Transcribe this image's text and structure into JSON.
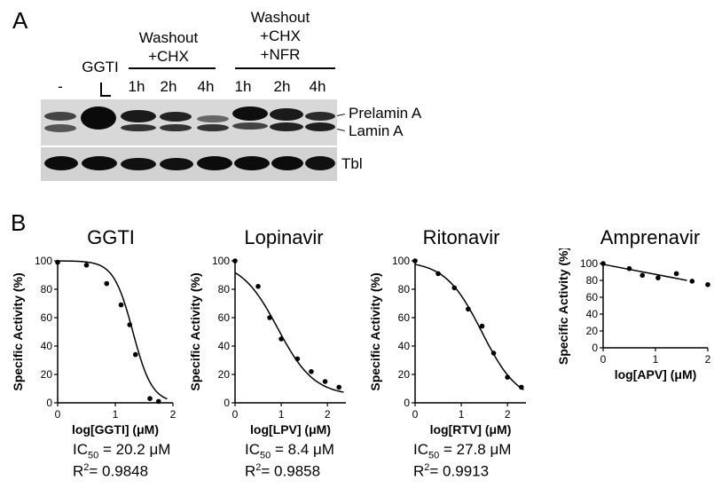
{
  "panel_a": {
    "label": "A",
    "lanes": [
      "-",
      "GGTI",
      "1h",
      "2h",
      "4h",
      "1h",
      "2h",
      "4h"
    ],
    "group1": {
      "line1": "Washout",
      "line2": "+CHX"
    },
    "group2": {
      "line1": "Washout",
      "line2": "+CHX",
      "line3": "+NFR"
    },
    "band_labels": {
      "prelamin": "Prelamin A",
      "lamin": "Lamin A",
      "tbl": "Tbl"
    }
  },
  "panel_b": {
    "label": "B"
  },
  "chart_data": [
    {
      "type": "scatter",
      "title": "GGTI",
      "xlabel": "log[GGTI] (μM)",
      "ylabel": "Specific Activity (%)",
      "xlim": [
        0,
        2
      ],
      "ylim": [
        0,
        100
      ],
      "xticks": [
        "0",
        "1",
        "2"
      ],
      "yticks": [
        "0",
        "20",
        "40",
        "60",
        "80",
        "100"
      ],
      "points": [
        [
          0.0,
          99
        ],
        [
          0.5,
          97
        ],
        [
          0.85,
          84
        ],
        [
          1.1,
          69
        ],
        [
          1.25,
          55
        ],
        [
          1.35,
          34
        ],
        [
          1.6,
          3
        ],
        [
          1.75,
          1
        ]
      ],
      "fit": "sigmoid",
      "fit_params": {
        "ic50_log": 1.305,
        "hill": 2.6
      },
      "ic50": {
        "prefix": "IC",
        "sub": "50",
        "value": "= 20.2 μM"
      },
      "r2": {
        "prefix": "R",
        "sup": "2",
        "value": "= 0.9848"
      }
    },
    {
      "type": "scatter",
      "title": "Lopinavir",
      "xlabel": "log[LPV] (μM)",
      "ylabel": "Specific Activity (%)",
      "xlim": [
        0,
        2.4
      ],
      "ylim": [
        0,
        100
      ],
      "xticks": [
        "0",
        "1",
        "2"
      ],
      "yticks": [
        "0",
        "20",
        "40",
        "60",
        "80",
        "100"
      ],
      "points": [
        [
          0.0,
          100
        ],
        [
          0.5,
          82
        ],
        [
          0.75,
          60
        ],
        [
          1.0,
          45
        ],
        [
          1.35,
          31
        ],
        [
          1.65,
          22
        ],
        [
          1.95,
          15
        ],
        [
          2.25,
          11
        ]
      ],
      "fit": "sigmoid",
      "fit_params": {
        "ic50_log": 0.924,
        "hill": 1.1,
        "bottom": 5
      },
      "ic50": {
        "prefix": "IC",
        "sub": "50",
        "value": "= 8.4 μM"
      },
      "r2": {
        "prefix": "R",
        "sup": "2",
        "value": "= 0.9858"
      }
    },
    {
      "type": "scatter",
      "title": "Ritonavir",
      "xlabel": "log[RTV] (μM)",
      "ylabel": "Specific Activity (%)",
      "xlim": [
        0,
        2.4
      ],
      "ylim": [
        0,
        100
      ],
      "xticks": [
        "0",
        "1",
        "2"
      ],
      "yticks": [
        "0",
        "20",
        "40",
        "60",
        "80",
        "100"
      ],
      "points": [
        [
          0.0,
          100
        ],
        [
          0.5,
          91
        ],
        [
          0.85,
          81
        ],
        [
          1.15,
          66
        ],
        [
          1.45,
          54
        ],
        [
          1.7,
          35
        ],
        [
          2.0,
          18
        ],
        [
          2.3,
          11
        ]
      ],
      "fit": "sigmoid",
      "fit_params": {
        "ic50_log": 1.444,
        "hill": 1.1
      },
      "ic50": {
        "prefix": "IC",
        "sub": "50",
        "value": "= 27.8 μM"
      },
      "r2": {
        "prefix": "R",
        "sup": "2",
        "value": "= 0.9913"
      }
    },
    {
      "type": "scatter",
      "title": "Amprenavir",
      "xlabel": "log[APV] (μM)",
      "ylabel": "Specific Activity (%)",
      "xlim": [
        0,
        2
      ],
      "ylim": [
        0,
        100
      ],
      "xticks": [
        "0",
        "1",
        "2"
      ],
      "yticks": [
        "0",
        "20",
        "40",
        "60",
        "80",
        "100"
      ],
      "points": [
        [
          0.0,
          100
        ],
        [
          0.5,
          94
        ],
        [
          0.75,
          86
        ],
        [
          1.05,
          83
        ],
        [
          1.4,
          88
        ],
        [
          1.7,
          79
        ],
        [
          2.0,
          75
        ]
      ],
      "fit": "linear",
      "fit_params": {
        "x0": 0,
        "y0": 99,
        "x1": 1.6,
        "y1": 80
      }
    }
  ]
}
